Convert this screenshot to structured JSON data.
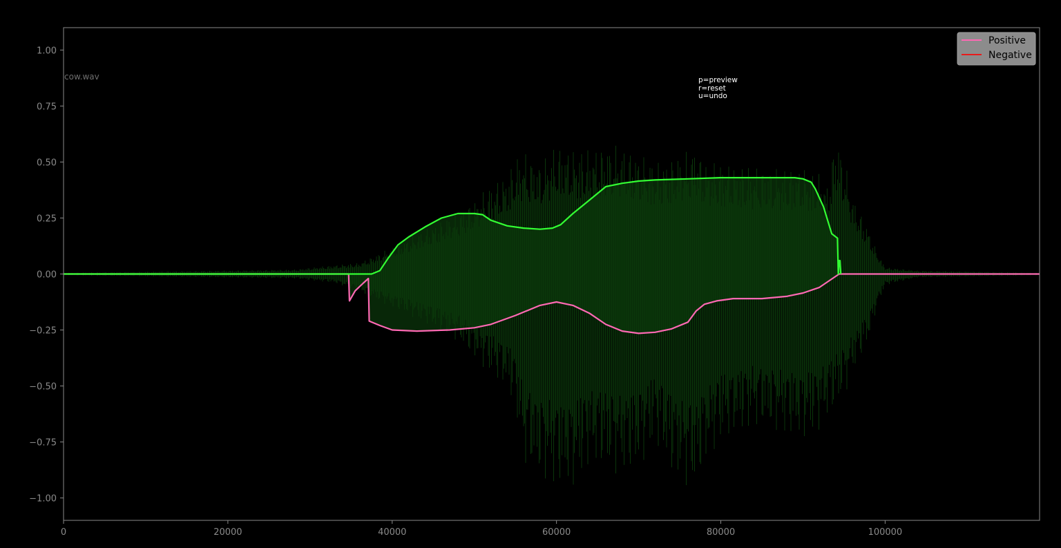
{
  "file_label": "cow.wav",
  "help_lines": [
    "p=preview",
    "r=reset",
    "u=undo"
  ],
  "colors": {
    "background": "#000000",
    "waveform": "#0b3b0b",
    "envelope_fill": "#082708",
    "positive_envelope": "#33ff33",
    "negative_envelope": "#ff69b4",
    "legend_negative": "#e81b1b",
    "axis": "#8a8a8a",
    "legend_bg": "#8c8c8c"
  },
  "chart_data": {
    "type": "line",
    "title": "",
    "xlabel": "",
    "ylabel": "",
    "xlim": [
      0,
      118800
    ],
    "ylim": [
      -1.1,
      1.1
    ],
    "x_ticks": [
      0,
      20000,
      40000,
      60000,
      80000,
      100000
    ],
    "x_tick_labels": [
      "0",
      "20000",
      "40000",
      "60000",
      "80000",
      "100000"
    ],
    "y_ticks": [
      1.0,
      0.75,
      0.5,
      0.25,
      0.0,
      -0.25,
      -0.5,
      -0.75,
      -1.0
    ],
    "y_tick_labels": [
      "1.00",
      "0.75",
      "0.50",
      "0.25",
      "0.00",
      "−0.25",
      "−0.50",
      "−0.75",
      "−1.00"
    ],
    "legend": {
      "placement": "top-right",
      "entries": [
        {
          "name": "Positive",
          "color": "#ff69b4"
        },
        {
          "name": "Negative",
          "color": "#e81b1b"
        }
      ]
    },
    "waveform_envelope": {
      "x": [
        0,
        28000,
        33000,
        36000,
        40000,
        44000,
        48000,
        50000,
        52000,
        54000,
        55000,
        56000,
        58000,
        60000,
        62000,
        64000,
        66000,
        68000,
        70000,
        72000,
        74000,
        76000,
        77000,
        78000,
        80000,
        82000,
        84000,
        86000,
        88000,
        90000,
        92000,
        93000,
        94000,
        95000,
        96000,
        98000,
        99000,
        100000,
        104000,
        118800
      ],
      "max": [
        0.005,
        0.02,
        0.04,
        0.05,
        0.12,
        0.2,
        0.28,
        0.33,
        0.4,
        0.45,
        0.52,
        0.55,
        0.5,
        0.58,
        0.56,
        0.56,
        0.58,
        0.57,
        0.54,
        0.5,
        0.52,
        0.55,
        0.58,
        0.5,
        0.5,
        0.49,
        0.48,
        0.48,
        0.47,
        0.48,
        0.45,
        0.4,
        0.63,
        0.52,
        0.35,
        0.2,
        0.1,
        0.03,
        0.015,
        0.005
      ],
      "min": [
        -0.005,
        -0.02,
        -0.04,
        -0.08,
        -0.15,
        -0.22,
        -0.3,
        -0.38,
        -0.45,
        -0.52,
        -0.6,
        -0.85,
        -0.92,
        -0.95,
        -0.97,
        -0.85,
        -0.88,
        -0.9,
        -0.88,
        -0.75,
        -0.9,
        -0.95,
        -0.98,
        -0.85,
        -0.75,
        -0.72,
        -0.68,
        -0.7,
        -0.72,
        -0.75,
        -0.7,
        -0.65,
        -0.6,
        -0.55,
        -0.45,
        -0.3,
        -0.15,
        -0.05,
        -0.015,
        -0.005
      ]
    },
    "series": [
      {
        "color": "#33ff33",
        "x": [
          0,
          34700,
          36000,
          37500,
          38500,
          39500,
          40700,
          42000,
          44000,
          46000,
          48000,
          50000,
          51000,
          52000,
          54000,
          56000,
          58000,
          59500,
          60500,
          62000,
          64000,
          66000,
          68000,
          70000,
          72000,
          76000,
          80000,
          85000,
          89000,
          90000,
          91000,
          91500,
          92500,
          93500,
          94200,
          94300,
          94400,
          94500,
          94600
        ],
        "y": [
          0,
          0,
          0,
          0,
          0.015,
          0.07,
          0.13,
          0.165,
          0.21,
          0.25,
          0.27,
          0.27,
          0.265,
          0.24,
          0.215,
          0.205,
          0.2,
          0.205,
          0.22,
          0.27,
          0.33,
          0.39,
          0.405,
          0.415,
          0.42,
          0.425,
          0.43,
          0.43,
          0.43,
          0.425,
          0.41,
          0.38,
          0.3,
          0.18,
          0.16,
          0.0,
          0.06,
          0.06,
          0.0
        ]
      },
      {
        "color": "#ff69b4",
        "x": [
          0,
          34700,
          34800,
          35500,
          36500,
          37100,
          37200,
          38500,
          40000,
          43000,
          47000,
          50000,
          52000,
          55000,
          58000,
          60000,
          62000,
          64000,
          66000,
          68000,
          70000,
          72000,
          74000,
          76000,
          77000,
          78000,
          79500,
          81500,
          85000,
          88000,
          90000,
          92000,
          94400,
          94500,
          118800
        ],
        "y": [
          0,
          0,
          -0.12,
          -0.075,
          -0.04,
          -0.02,
          -0.21,
          -0.23,
          -0.25,
          -0.255,
          -0.25,
          -0.24,
          -0.225,
          -0.185,
          -0.14,
          -0.125,
          -0.14,
          -0.175,
          -0.225,
          -0.255,
          -0.265,
          -0.26,
          -0.245,
          -0.215,
          -0.165,
          -0.135,
          -0.12,
          -0.11,
          -0.11,
          -0.1,
          -0.085,
          -0.06,
          0.0,
          0.0,
          0.0
        ]
      }
    ]
  }
}
